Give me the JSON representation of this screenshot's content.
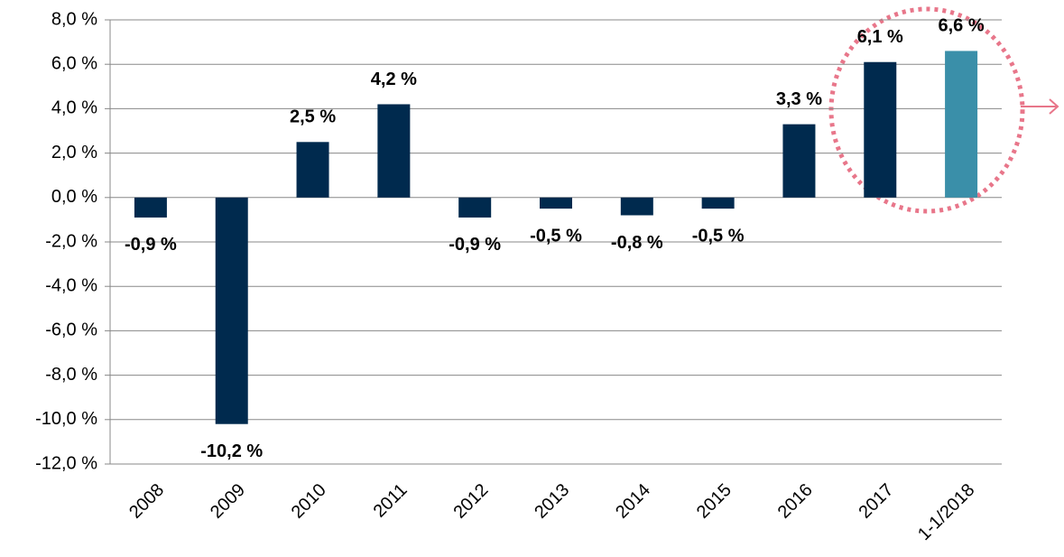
{
  "chart_data": {
    "type": "bar",
    "categories": [
      "2008",
      "2009",
      "2010",
      "2011",
      "2012",
      "2013",
      "2014",
      "2015",
      "2016",
      "2017",
      "1-1/2018"
    ],
    "values": [
      -0.9,
      -10.2,
      2.5,
      4.2,
      -0.9,
      -0.5,
      -0.8,
      -0.5,
      3.3,
      6.1,
      6.6
    ],
    "value_labels": [
      "-0,9 %",
      "-10,2 %",
      "2,5 %",
      "4,2 %",
      "-0,9 %",
      "-0,5 %",
      "-0,8 %",
      "-0,5 %",
      "3,3 %",
      "6,1 %",
      "6,6 %"
    ],
    "colors": [
      "#002a4e",
      "#002a4e",
      "#002a4e",
      "#002a4e",
      "#002a4e",
      "#002a4e",
      "#002a4e",
      "#002a4e",
      "#002a4e",
      "#002a4e",
      "#3a8fa9"
    ],
    "ylim": [
      -12,
      8
    ],
    "yticks": [
      {
        "value": -12,
        "label": "-12,0 %"
      },
      {
        "value": -10,
        "label": "-10,0 %"
      },
      {
        "value": -8,
        "label": "-8,0 %"
      },
      {
        "value": -6,
        "label": "-6,0 %"
      },
      {
        "value": -4,
        "label": "-4,0 %"
      },
      {
        "value": -2,
        "label": "-2,0 %"
      },
      {
        "value": 0,
        "label": "0,0 %"
      },
      {
        "value": 2,
        "label": "2,0 %"
      },
      {
        "value": 4,
        "label": "4,0 %"
      },
      {
        "value": 6,
        "label": "6,0 %"
      },
      {
        "value": 8,
        "label": "8,0 %"
      }
    ],
    "grid": true
  }
}
